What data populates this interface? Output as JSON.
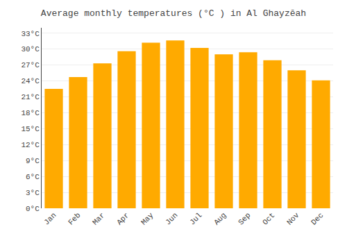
{
  "chart_data": {
    "type": "bar",
    "title": "Average monthly temperatures (°C ) in Al Ghayzēah",
    "categories": [
      "Jan",
      "Feb",
      "Mar",
      "Apr",
      "May",
      "Jun",
      "Jul",
      "Aug",
      "Sep",
      "Oct",
      "Nov",
      "Dec"
    ],
    "values": [
      22.5,
      24.7,
      27.3,
      29.6,
      31.2,
      31.6,
      30.2,
      29.0,
      29.4,
      27.9,
      26.0,
      24.1
    ],
    "color": "#FFAA00",
    "ylim": [
      0,
      34
    ],
    "yticks": [
      {
        "value": 0,
        "label": "0°C"
      },
      {
        "value": 3,
        "label": "3°C"
      },
      {
        "value": 6,
        "label": "6°C"
      },
      {
        "value": 9,
        "label": "9°C"
      },
      {
        "value": 12,
        "label": "12°C"
      },
      {
        "value": 15,
        "label": "15°C"
      },
      {
        "value": 18,
        "label": "18°C"
      },
      {
        "value": 21,
        "label": "21°C"
      },
      {
        "value": 24,
        "label": "24°C"
      },
      {
        "value": 27,
        "label": "27°C"
      },
      {
        "value": 30,
        "label": "30°C"
      },
      {
        "value": 33,
        "label": "33°C"
      }
    ],
    "grid": true
  }
}
